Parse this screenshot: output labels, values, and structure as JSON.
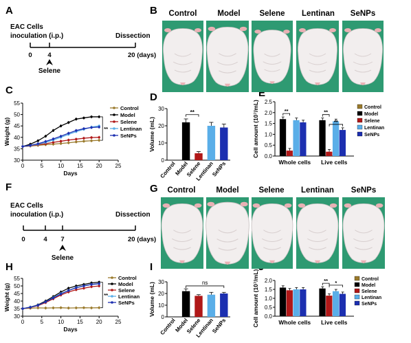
{
  "panels": {
    "A": {
      "letter": "A",
      "line1": "EAC Cells",
      "line2": "inoculation (i.p.)",
      "end_label": "Dissection",
      "ticks": [
        "0",
        "4",
        "20 (days)"
      ],
      "drug": "Selene"
    },
    "F": {
      "letter": "F",
      "line1": "EAC Cells",
      "line2": "inoculation (i.p.)",
      "end_label": "Dissection",
      "ticks": [
        "0",
        "4",
        "7",
        "20 (days)"
      ],
      "drug": "Selene"
    },
    "B": {
      "letter": "B",
      "groups": [
        "Control",
        "Model",
        "Selene",
        "Lentinan",
        "SeNPs"
      ]
    },
    "G": {
      "letter": "G",
      "groups": [
        "Control",
        "Model",
        "Selene",
        "Lentinan",
        "SeNPs"
      ]
    },
    "C": {
      "letter": "C"
    },
    "D": {
      "letter": "D"
    },
    "E": {
      "letter": "E"
    },
    "H": {
      "letter": "H"
    },
    "I": {
      "letter": "I"
    },
    "J": {
      "letter": "J"
    }
  },
  "colors": {
    "Control": "#9a7a2c",
    "Model": "#000000",
    "Selene": "#b01818",
    "Lentinan": "#5aaee8",
    "SeNPs": "#1c2fb0"
  },
  "chart_data": [
    {
      "id": "C",
      "type": "line",
      "xlabel": "Days",
      "ylabel": "Weight (g)",
      "xlim": [
        0,
        25
      ],
      "ylim": [
        30,
        55
      ],
      "xticks": [
        0,
        5,
        10,
        15,
        20,
        25
      ],
      "yticks": [
        30,
        35,
        40,
        45,
        50,
        55
      ],
      "x": [
        0,
        2,
        4,
        6,
        8,
        10,
        12,
        14,
        16,
        18,
        20
      ],
      "series": [
        {
          "name": "Control",
          "values": [
            36,
            36.2,
            36.5,
            36.8,
            37,
            37.3,
            37.6,
            38,
            38.3,
            38.5,
            38.7
          ]
        },
        {
          "name": "Model",
          "values": [
            36,
            37,
            38.5,
            40.5,
            43,
            45,
            46.5,
            48,
            48.5,
            49,
            49
          ]
        },
        {
          "name": "Selene",
          "values": [
            36,
            36.3,
            36.8,
            37.2,
            37.8,
            38.3,
            38.8,
            39.2,
            39.6,
            39.9,
            40
          ]
        },
        {
          "name": "Lentinan",
          "values": [
            36,
            36.4,
            37,
            37.8,
            38.8,
            40,
            41.3,
            42.5,
            43.5,
            44.5,
            45
          ]
        },
        {
          "name": "SeNPs",
          "values": [
            36,
            36.5,
            37.2,
            38.2,
            39.3,
            40.5,
            41.8,
            43,
            43.8,
            44.3,
            44.5
          ]
        }
      ],
      "annotation": "**",
      "legend_position": "right"
    },
    {
      "id": "D",
      "type": "bar",
      "ylabel": "Volume (mL)",
      "ylim": [
        0,
        30
      ],
      "yticks": [
        0,
        10,
        20,
        30
      ],
      "categories": [
        "Control",
        "Model",
        "Selene",
        "Lentinan",
        "SeNPs"
      ],
      "values": [
        0,
        22,
        4,
        20,
        19
      ],
      "errors": [
        0,
        2,
        1,
        2,
        2
      ],
      "annotation": "**"
    },
    {
      "id": "E",
      "type": "bar",
      "ylabel": "Cell amount (10⁷/mL)",
      "ylim": [
        0,
        2.5
      ],
      "yticks": [
        0.0,
        0.5,
        1.0,
        1.5,
        2.0,
        2.5
      ],
      "categories": [
        "Whole cells",
        "Live cells"
      ],
      "series": [
        {
          "name": "Control",
          "values": [
            null,
            null
          ]
        },
        {
          "name": "Model",
          "values": [
            1.7,
            1.65
          ]
        },
        {
          "name": "Selene",
          "values": [
            0.25,
            0.2
          ]
        },
        {
          "name": "Lentinan",
          "values": [
            1.65,
            1.6
          ]
        },
        {
          "name": "SeNPs",
          "values": [
            1.55,
            1.2
          ]
        }
      ],
      "annotations": [
        "**",
        "**",
        "**"
      ],
      "legend_position": "right"
    },
    {
      "id": "H",
      "type": "line",
      "xlabel": "Days",
      "ylabel": "Weight (g)",
      "xlim": [
        0,
        25
      ],
      "ylim": [
        30,
        55
      ],
      "xticks": [
        0,
        5,
        10,
        15,
        20,
        25
      ],
      "yticks": [
        30,
        35,
        40,
        45,
        50,
        55
      ],
      "x": [
        0,
        2,
        4,
        6,
        8,
        10,
        12,
        14,
        16,
        18,
        20
      ],
      "series": [
        {
          "name": "Control",
          "values": [
            35,
            35.3,
            35.5,
            35.4,
            35.5,
            35.6,
            35.4,
            35.5,
            35.6,
            35.5,
            35.6
          ]
        },
        {
          "name": "Model",
          "values": [
            35,
            36,
            37.5,
            40,
            43,
            46,
            48.5,
            50,
            51,
            52,
            52.5
          ]
        },
        {
          "name": "Selene",
          "values": [
            35,
            35.8,
            37,
            39,
            41.5,
            44,
            46,
            47.5,
            48.5,
            49.5,
            50
          ]
        },
        {
          "name": "Lentinan",
          "values": [
            35,
            36,
            37.3,
            39.5,
            42.3,
            45,
            47,
            49,
            50,
            51,
            51.5
          ]
        },
        {
          "name": "SeNPs",
          "values": [
            35,
            35.9,
            37.2,
            39.5,
            42,
            44.7,
            47,
            48.8,
            50,
            51,
            51.5
          ]
        }
      ],
      "annotation": "**",
      "legend_position": "right"
    },
    {
      "id": "I",
      "type": "bar",
      "ylabel": "Volume (mL)",
      "ylim": [
        0,
        30
      ],
      "yticks": [
        0,
        10,
        20,
        30
      ],
      "categories": [
        "Control",
        "Model",
        "Selene",
        "Lentinan",
        "SeNPs"
      ],
      "values": [
        0,
        22,
        18,
        19,
        20
      ],
      "errors": [
        0,
        2,
        1,
        2,
        1
      ],
      "annotation": "ns"
    },
    {
      "id": "J",
      "type": "bar",
      "ylabel": "Cell amount (10⁷/mL)",
      "ylim": [
        0,
        2.0
      ],
      "yticks": [
        0.0,
        0.5,
        1.0,
        1.5,
        2.0
      ],
      "categories": [
        "Whole cells",
        "Live cells"
      ],
      "series": [
        {
          "name": "Control",
          "values": [
            null,
            null
          ]
        },
        {
          "name": "Model",
          "values": [
            1.6,
            1.55
          ]
        },
        {
          "name": "Selene",
          "values": [
            1.45,
            1.15
          ]
        },
        {
          "name": "Lentinan",
          "values": [
            1.5,
            1.4
          ]
        },
        {
          "name": "SeNPs",
          "values": [
            1.5,
            1.25
          ]
        }
      ],
      "annotations": [
        "**",
        "*"
      ],
      "legend_position": "right"
    }
  ]
}
